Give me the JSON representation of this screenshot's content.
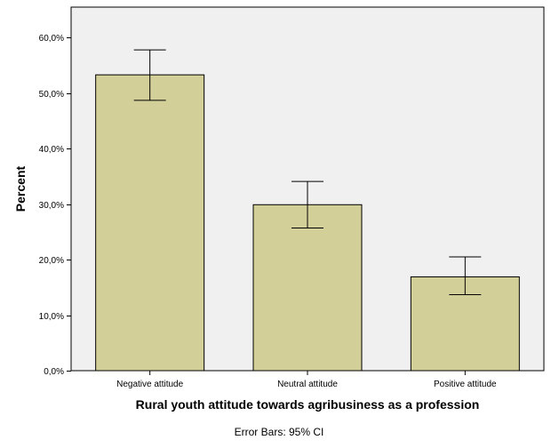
{
  "chart_data": {
    "type": "bar",
    "categories": [
      "Negative attitude",
      "Neutral attitude",
      "Positive attitude"
    ],
    "values": [
      53.3,
      29.9,
      16.9
    ],
    "error_bars": [
      {
        "low": 48.7,
        "high": 57.8
      },
      {
        "low": 25.7,
        "high": 34.1
      },
      {
        "low": 13.7,
        "high": 20.5
      }
    ],
    "xlabel": "Rural youth attitude towards agribusiness as a profession",
    "ylabel": "Percent",
    "ylim": [
      0,
      65.5
    ],
    "yticks": [
      {
        "value": 0,
        "label": "0,0%"
      },
      {
        "value": 10,
        "label": "10,0%"
      },
      {
        "value": 20,
        "label": "20,0%"
      },
      {
        "value": 30,
        "label": "30,0%"
      },
      {
        "value": 40,
        "label": "40,0%"
      },
      {
        "value": 50,
        "label": "50,0%"
      },
      {
        "value": 60,
        "label": "60,0%"
      }
    ],
    "footnote": "Error Bars: 95% CI",
    "grid": false,
    "colors": {
      "plot_background": "#f0f0f0",
      "bar_fill": "#d3cf98",
      "bar_stroke": "#000000"
    }
  }
}
